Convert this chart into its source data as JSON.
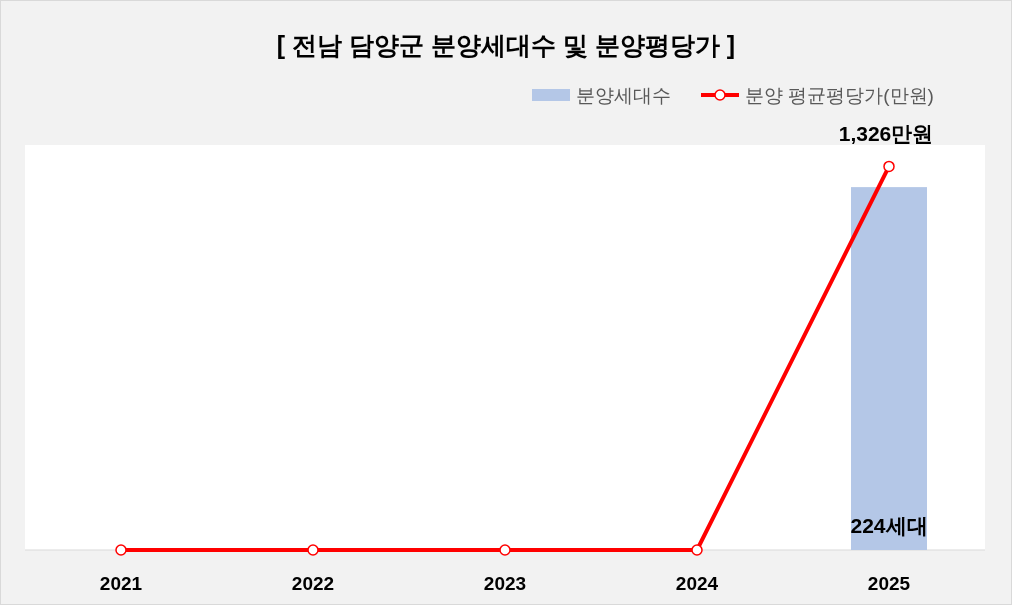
{
  "chart_data": {
    "type": "bar",
    "title": "[ 전남 담양군 분양세대수 및 분양평당가 ]",
    "categories": [
      "2021",
      "2022",
      "2023",
      "2024",
      "2025"
    ],
    "series": [
      {
        "name": "분양세대수",
        "color": "#b4c7e7",
        "values": [
          0,
          0,
          0,
          0,
          224
        ],
        "value_labels": [
          null,
          null,
          null,
          null,
          "224세대"
        ]
      },
      {
        "name": "분양 평균평당가(만원)",
        "type": "line",
        "axis": "y2",
        "color": "#ff0000",
        "values": [
          0,
          0,
          0,
          0,
          1326
        ],
        "value_labels": [
          null,
          null,
          null,
          null,
          "1,326만원"
        ]
      }
    ],
    "ylim": [
      0,
      250
    ],
    "y2lim": [
      0,
      1400
    ],
    "tick_labels": "x",
    "legend": "top right",
    "marker": "circle",
    "line_style": "solid"
  }
}
